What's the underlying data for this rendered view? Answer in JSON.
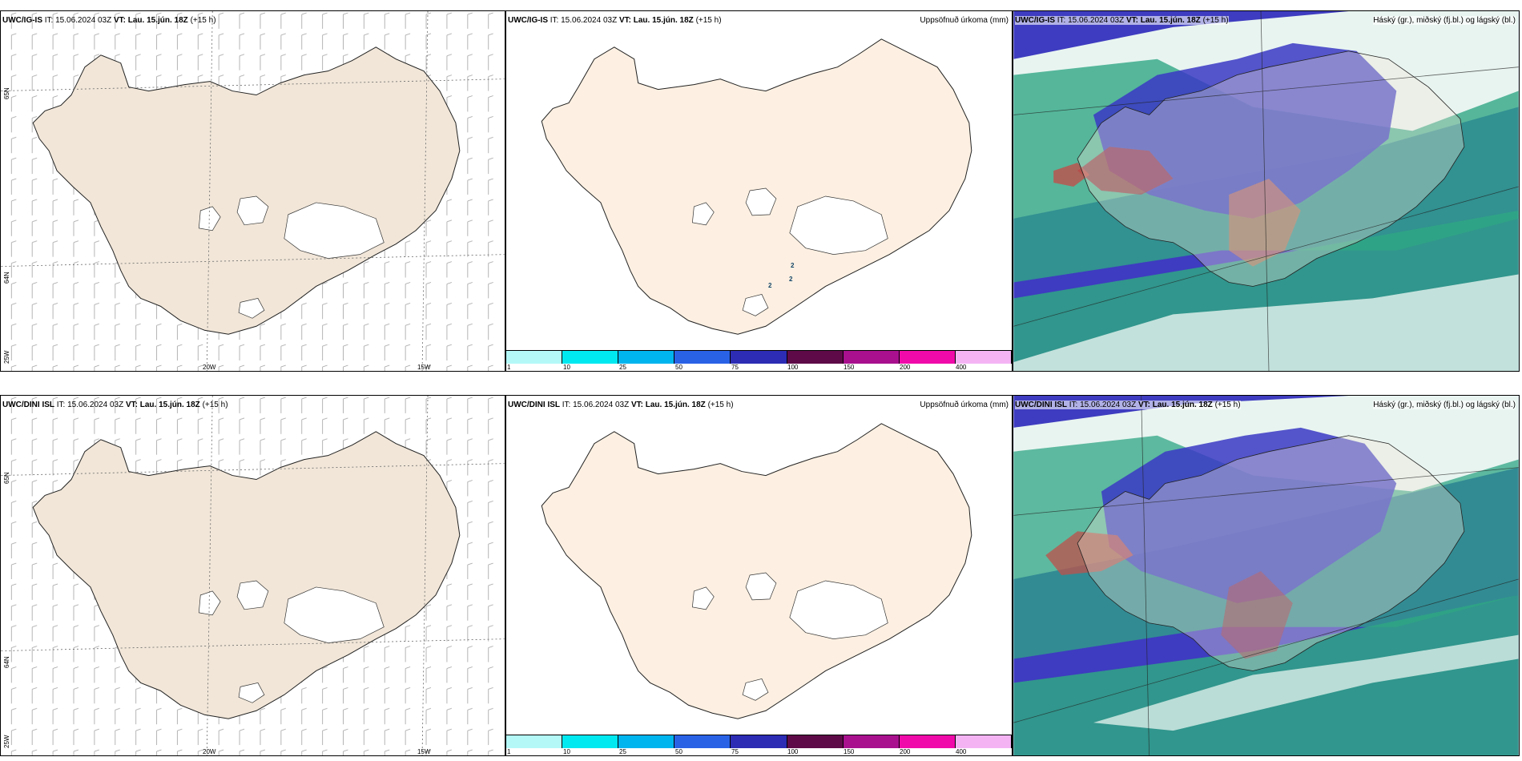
{
  "rows": [
    {
      "model": "UWC/IG-IS",
      "it_label": "IT:",
      "it_value": "15.06.2024 03Z",
      "vt_label": "VT:",
      "vt_value": "Lau. 15.jún. 18Z",
      "lead": "(+15 h)"
    },
    {
      "model": "UWC/DINI ISL",
      "it_label": "IT:",
      "it_value": "15.06.2024 03Z",
      "vt_label": "VT:",
      "vt_value": "Lau. 15.jún. 18Z",
      "lead": "(+15 h)"
    }
  ],
  "titles": {
    "precip": "Uppsöfnuð úrkoma (mm)",
    "cloud": "Háský (gr.), miðský (fj.bl.) og lágský (bl.)"
  },
  "graticule": {
    "lat65": "65N",
    "lat64": "64N",
    "lon25": "25W",
    "lon20": "20W",
    "lon15": "15W"
  },
  "precip_legend": {
    "ticks": [
      "1",
      "10",
      "25",
      "50",
      "75",
      "100",
      "150",
      "200",
      "400"
    ],
    "colors": [
      "#b4f8f8",
      "#00e8f0",
      "#00b4ee",
      "#2a62e6",
      "#2c2cb4",
      "#5e0a48",
      "#a8108e",
      "#f00aaa",
      "#f4b4f4"
    ]
  },
  "precip_values": [
    "2",
    "2",
    "2"
  ],
  "colors": {
    "land_wind": "#f1e6d8",
    "land_precip": "#fdf0e2",
    "sea_cloud_green": "#2fa684",
    "cloud_blue": "#3a38c4",
    "cloud_red": "#9a2a3a"
  }
}
